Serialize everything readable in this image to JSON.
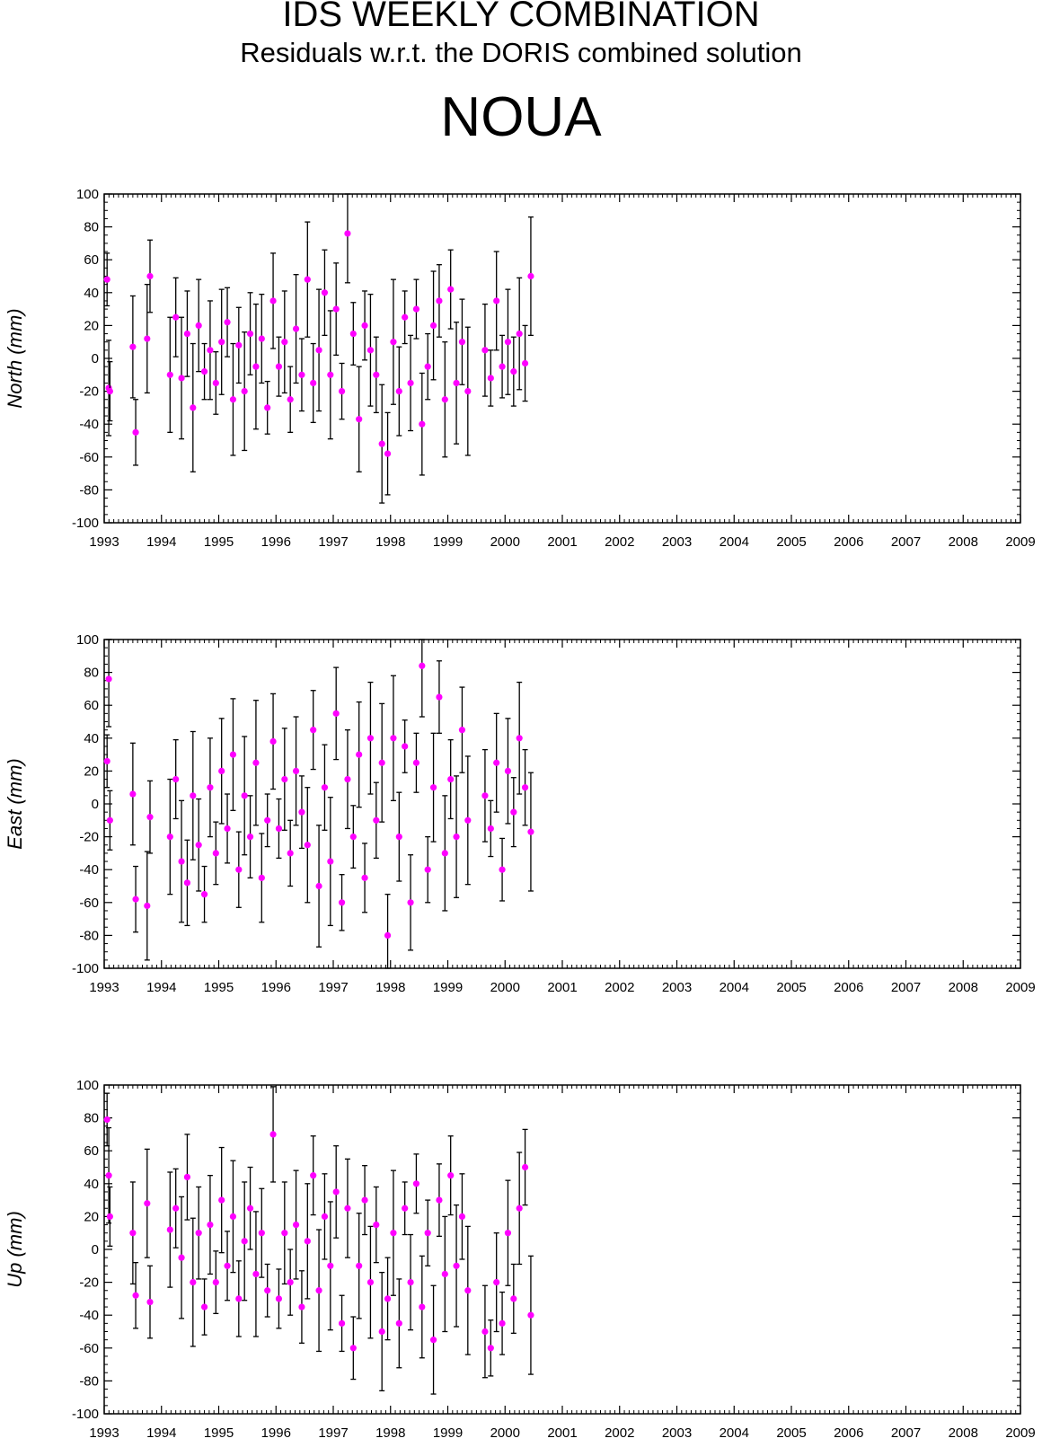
{
  "header": {
    "title": "IDS WEEKLY COMBINATION",
    "subtitle": "Residuals w.r.t. the DORIS combined solution",
    "station": "NOUA"
  },
  "colors": {
    "point": "#ff00ff",
    "errorbar": "#000000",
    "frame": "#000000"
  },
  "chart_data": [
    {
      "type": "scatter",
      "ylabel": "North (mm)",
      "xlim": [
        1993,
        2009
      ],
      "ylim": [
        -100,
        100
      ],
      "xticks": [
        "1993",
        "1994",
        "1995",
        "1996",
        "1997",
        "1998",
        "1999",
        "2000",
        "2001",
        "2002",
        "2003",
        "2004",
        "2005",
        "2006",
        "2007",
        "2008",
        "2009"
      ],
      "yticks": [
        "100",
        "80",
        "60",
        "40",
        "20",
        "0",
        "-20",
        "-40",
        "-60",
        "-80",
        "-100"
      ],
      "error_bars": true,
      "series": [
        {
          "x": [
            1993.05,
            1993.08,
            1993.1,
            1993.5,
            1993.55,
            1993.75,
            1993.8,
            1994.15,
            1994.25,
            1994.35,
            1994.45,
            1994.55,
            1994.65,
            1994.75,
            1994.85,
            1994.95,
            1995.05,
            1995.15,
            1995.25,
            1995.35,
            1995.45,
            1995.55,
            1995.65,
            1995.75,
            1995.85,
            1995.95,
            1996.05,
            1996.15,
            1996.25,
            1996.35,
            1996.45,
            1996.55,
            1996.65,
            1996.75,
            1996.85,
            1996.95,
            1997.05,
            1997.15,
            1997.25,
            1997.35,
            1997.45,
            1997.55,
            1997.65,
            1997.75,
            1997.85,
            1997.95,
            1998.05,
            1998.15,
            1998.25,
            1998.35,
            1998.45,
            1998.55,
            1998.65,
            1998.75,
            1998.85,
            1998.95,
            1999.05,
            1999.15,
            1999.25,
            1999.35,
            1999.65,
            1999.75,
            1999.85,
            1999.95,
            2000.05,
            2000.15,
            2000.25,
            2000.35,
            2000.45
          ],
          "y": [
            48,
            -18,
            -20,
            7,
            -45,
            12,
            50,
            -10,
            25,
            -12,
            15,
            -30,
            20,
            -8,
            5,
            -15,
            10,
            22,
            -25,
            8,
            -20,
            15,
            -5,
            12,
            -30,
            35,
            -5,
            10,
            -25,
            18,
            -10,
            48,
            -15,
            5,
            40,
            -10,
            30,
            -20,
            76,
            15,
            -37,
            20,
            5,
            -10,
            -52,
            -58,
            10,
            -20,
            25,
            -15,
            30,
            -40,
            -5,
            20,
            35,
            -25,
            42,
            -15,
            10,
            -20,
            5,
            -12,
            35,
            -5,
            10,
            -8,
            15,
            -3,
            50
          ]
        }
      ]
    },
    {
      "type": "scatter",
      "ylabel": "East (mm)",
      "xlim": [
        1993,
        2009
      ],
      "ylim": [
        -100,
        100
      ],
      "xticks": [
        "1993",
        "1994",
        "1995",
        "1996",
        "1997",
        "1998",
        "1999",
        "2000",
        "2001",
        "2002",
        "2003",
        "2004",
        "2005",
        "2006",
        "2007",
        "2008",
        "2009"
      ],
      "yticks": [
        "100",
        "80",
        "60",
        "40",
        "20",
        "0",
        "-20",
        "-40",
        "-60",
        "-80",
        "-100"
      ],
      "error_bars": true,
      "series": [
        {
          "x": [
            1993.05,
            1993.08,
            1993.1,
            1993.5,
            1993.55,
            1993.75,
            1993.8,
            1994.15,
            1994.25,
            1994.35,
            1994.45,
            1994.55,
            1994.65,
            1994.75,
            1994.85,
            1994.95,
            1995.05,
            1995.15,
            1995.25,
            1995.35,
            1995.45,
            1995.55,
            1995.65,
            1995.75,
            1995.85,
            1995.95,
            1996.05,
            1996.15,
            1996.25,
            1996.35,
            1996.45,
            1996.55,
            1996.65,
            1996.75,
            1996.85,
            1996.95,
            1997.05,
            1997.15,
            1997.25,
            1997.35,
            1997.45,
            1997.55,
            1997.65,
            1997.75,
            1997.85,
            1997.95,
            1998.05,
            1998.15,
            1998.25,
            1998.35,
            1998.45,
            1998.55,
            1998.65,
            1998.75,
            1998.85,
            1998.95,
            1999.05,
            1999.15,
            1999.25,
            1999.35,
            1999.65,
            1999.75,
            1999.85,
            1999.95,
            2000.05,
            2000.15,
            2000.25,
            2000.35,
            2000.45
          ],
          "y": [
            26,
            76,
            -10,
            6,
            -58,
            -62,
            -8,
            -20,
            15,
            -35,
            -48,
            5,
            -25,
            -55,
            10,
            -30,
            20,
            -15,
            30,
            -40,
            5,
            -20,
            25,
            -45,
            -10,
            38,
            -15,
            15,
            -30,
            20,
            -5,
            -25,
            45,
            -50,
            10,
            -35,
            55,
            -60,
            15,
            -20,
            30,
            -45,
            40,
            -10,
            25,
            -80,
            40,
            -20,
            35,
            -60,
            25,
            84,
            -40,
            10,
            65,
            -30,
            15,
            -20,
            45,
            -10,
            5,
            -15,
            25,
            -40,
            20,
            -5,
            40,
            10,
            -17
          ]
        }
      ]
    },
    {
      "type": "scatter",
      "ylabel": "Up (mm)",
      "xlim": [
        1993,
        2009
      ],
      "ylim": [
        -100,
        100
      ],
      "xticks": [
        "1993",
        "1994",
        "1995",
        "1996",
        "1997",
        "1998",
        "1999",
        "2000",
        "2001",
        "2002",
        "2003",
        "2004",
        "2005",
        "2006",
        "2007",
        "2008",
        "2009"
      ],
      "yticks": [
        "100",
        "80",
        "60",
        "40",
        "20",
        "0",
        "-20",
        "-40",
        "-60",
        "-80",
        "-100"
      ],
      "error_bars": true,
      "series": [
        {
          "x": [
            1993.05,
            1993.08,
            1993.1,
            1993.5,
            1993.55,
            1993.75,
            1993.8,
            1994.15,
            1994.25,
            1994.35,
            1994.45,
            1994.55,
            1994.65,
            1994.75,
            1994.85,
            1994.95,
            1995.05,
            1995.15,
            1995.25,
            1995.35,
            1995.45,
            1995.55,
            1995.65,
            1995.75,
            1995.85,
            1995.95,
            1996.05,
            1996.15,
            1996.25,
            1996.35,
            1996.45,
            1996.55,
            1996.65,
            1996.75,
            1996.85,
            1996.95,
            1997.05,
            1997.15,
            1997.25,
            1997.35,
            1997.45,
            1997.55,
            1997.65,
            1997.75,
            1997.85,
            1997.95,
            1998.05,
            1998.15,
            1998.25,
            1998.35,
            1998.45,
            1998.55,
            1998.65,
            1998.75,
            1998.85,
            1998.95,
            1999.05,
            1999.15,
            1999.25,
            1999.35,
            1999.65,
            1999.75,
            1999.85,
            1999.95,
            2000.05,
            2000.15,
            2000.25,
            2000.35,
            2000.45
          ],
          "y": [
            79,
            45,
            20,
            10,
            -28,
            28,
            -32,
            12,
            25,
            -5,
            44,
            -20,
            10,
            -35,
            15,
            -20,
            30,
            -10,
            20,
            -30,
            5,
            25,
            -15,
            10,
            -25,
            70,
            -30,
            10,
            -20,
            15,
            -35,
            5,
            45,
            -25,
            20,
            -10,
            35,
            -45,
            25,
            -60,
            -10,
            30,
            -20,
            15,
            -50,
            -30,
            10,
            -45,
            25,
            -20,
            40,
            -35,
            10,
            -55,
            30,
            -15,
            45,
            -10,
            20,
            -25,
            -50,
            -60,
            -20,
            -45,
            10,
            -30,
            25,
            50,
            -40
          ]
        }
      ]
    }
  ]
}
